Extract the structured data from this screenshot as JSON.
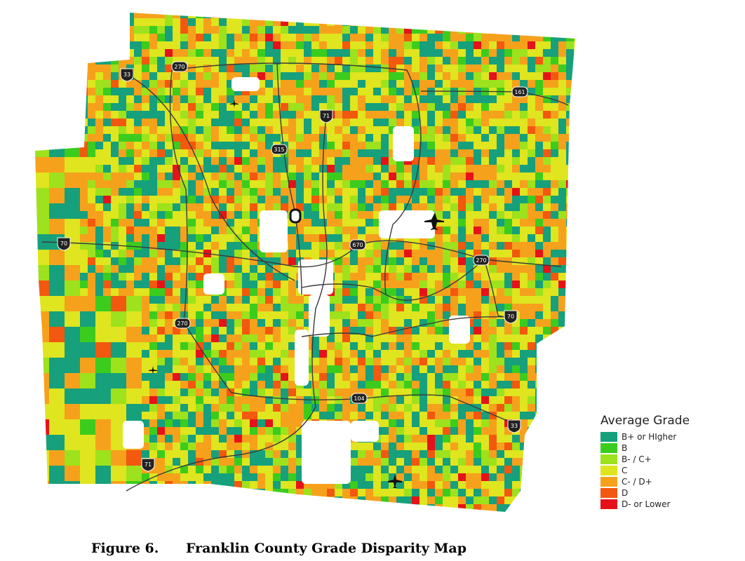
{
  "legend": {
    "title": "Average Grade",
    "items": [
      {
        "label": "B+ or HIgher",
        "color": "#16a07c"
      },
      {
        "label": "B",
        "color": "#3ccc1e"
      },
      {
        "label": "B- / C+",
        "color": "#9de21c"
      },
      {
        "label": "C",
        "color": "#dfe51e"
      },
      {
        "label": "C- / D+",
        "color": "#f6a11c"
      },
      {
        "label": "D",
        "color": "#f2580e"
      },
      {
        "label": "D- or Lower",
        "color": "#e6121a"
      }
    ]
  },
  "highways": [
    "33",
    "270",
    "71",
    "161",
    "315",
    "70",
    "670",
    "270",
    "70",
    "270",
    "104",
    "33",
    "71"
  ],
  "caption": {
    "label": "Figure 6.",
    "title": "Franklin County Grade Disparity Map"
  }
}
